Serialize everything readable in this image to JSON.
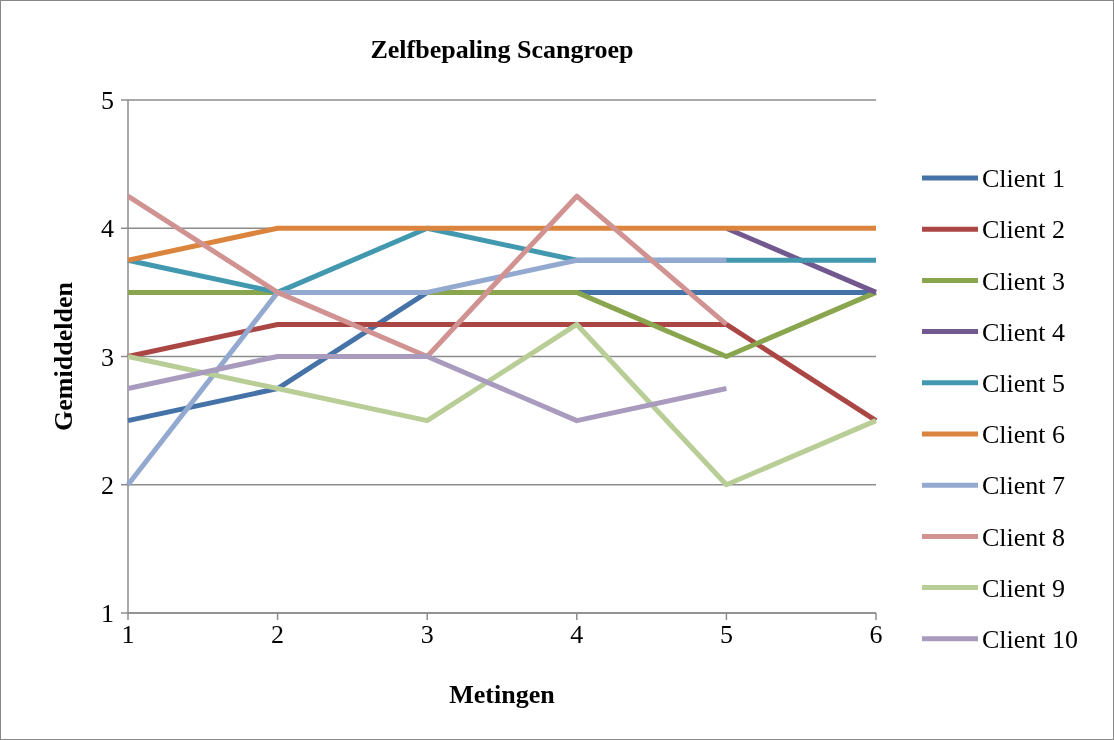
{
  "chart_data": {
    "type": "line",
    "title": "Zelfbepaling Scangroep",
    "xlabel": "Metingen",
    "ylabel": "Gemiddelden",
    "x": [
      1,
      2,
      3,
      4,
      5,
      6
    ],
    "xlim": [
      1,
      6
    ],
    "xticks": [
      1,
      2,
      3,
      4,
      5,
      6
    ],
    "ylim": [
      1,
      5
    ],
    "yticks": [
      1,
      2,
      3,
      4,
      5
    ],
    "grid": "y",
    "legend": "right",
    "marker": "none",
    "line_style": "solid",
    "series": [
      {
        "name": "Client 1",
        "color": "#4572a7",
        "values": [
          2.5,
          2.75,
          3.5,
          3.5,
          3.5,
          3.5
        ]
      },
      {
        "name": "Client 2",
        "color": "#aa4643",
        "values": [
          3,
          3.25,
          3.25,
          3.25,
          3.25,
          2.5
        ]
      },
      {
        "name": "Client 3",
        "color": "#89a54e",
        "values": [
          3.5,
          3.5,
          3.5,
          3.5,
          3,
          3.5
        ]
      },
      {
        "name": "Client 4",
        "color": "#71588f",
        "values": [
          null,
          null,
          null,
          null,
          4,
          3.5
        ]
      },
      {
        "name": "Client 5",
        "color": "#4198af",
        "values": [
          3.75,
          3.5,
          4,
          3.75,
          3.75,
          3.75
        ]
      },
      {
        "name": "Client 6",
        "color": "#db843d",
        "values": [
          3.75,
          4,
          4,
          4,
          4,
          4
        ]
      },
      {
        "name": "Client 7",
        "color": "#93a9cf",
        "values": [
          2,
          3.5,
          3.5,
          3.75,
          3.75,
          null
        ]
      },
      {
        "name": "Client 8",
        "color": "#d19392",
        "values": [
          4.25,
          3.5,
          3,
          4.25,
          3.25,
          null
        ]
      },
      {
        "name": "Client 9",
        "color": "#b9cd96",
        "values": [
          3,
          2.75,
          2.5,
          3.25,
          2,
          2.5
        ]
      },
      {
        "name": "Client 10",
        "color": "#a99bbd",
        "values": [
          2.75,
          3,
          3,
          2.5,
          2.75,
          null
        ]
      }
    ]
  }
}
